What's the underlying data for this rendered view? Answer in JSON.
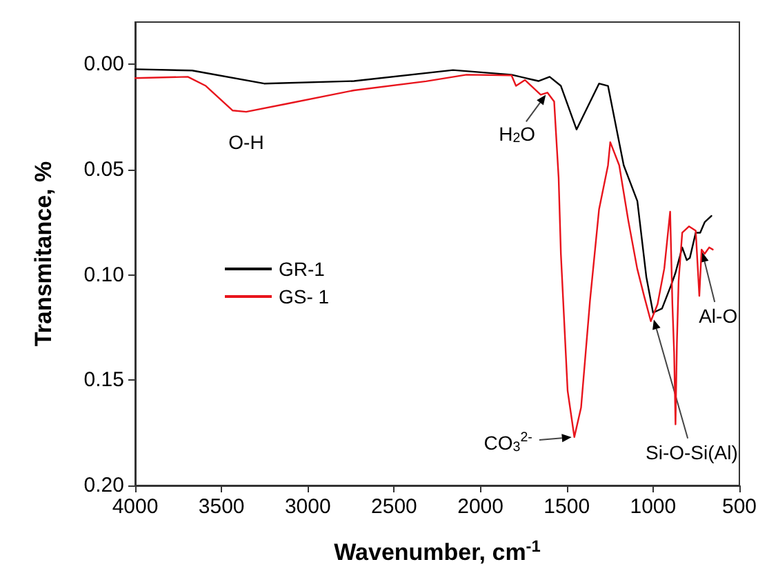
{
  "chart_data": {
    "type": "line",
    "xlabel": "Wavenumber, cm$^{-1}$",
    "ylabel": "Transmitance, %",
    "xlim": [
      4000,
      500
    ],
    "xticks": [
      4000,
      3500,
      3000,
      2500,
      2000,
      1500,
      1000,
      500
    ],
    "ylim": [
      0.2,
      -0.02
    ],
    "yticks": [
      {
        "value": 0,
        "label": "0.00"
      },
      {
        "value": 0.05,
        "label": "0.05"
      },
      {
        "value": 0.1,
        "label": "0.10"
      },
      {
        "value": 0.15,
        "label": "0.15"
      },
      {
        "value": 0.2,
        "label": "0.20"
      }
    ],
    "grid": false,
    "legend": "left",
    "marker": "none",
    "line_style": "solid",
    "series": [
      {
        "name": "GR-1",
        "color": "#000000",
        "x": [
          4000,
          3670,
          3253,
          2732,
          2159,
          1820,
          1664,
          1599,
          1534,
          1443,
          1313,
          1261,
          1170,
          1091,
          1039,
          1000,
          948,
          896,
          870,
          831,
          805,
          787,
          753,
          727,
          701,
          662
        ],
        "values": [
          0.0024,
          0.003,
          0.0092,
          0.008,
          0.0028,
          0.005,
          0.008,
          0.006,
          0.0103,
          0.031,
          0.0092,
          0.0103,
          0.048,
          0.065,
          0.101,
          0.118,
          0.116,
          0.105,
          0.099,
          0.087,
          0.093,
          0.092,
          0.08,
          0.08,
          0.075,
          0.072
        ]
      },
      {
        "name": "GS- 1",
        "color": "#e8141c",
        "x": [
          4000,
          3695,
          3591,
          3435,
          3357,
          3122,
          2732,
          2315,
          2081,
          1820,
          1794,
          1742,
          1651,
          1612,
          1573,
          1547,
          1534,
          1495,
          1456,
          1417,
          1365,
          1313,
          1261,
          1248,
          1196,
          1144,
          1092,
          1052,
          1013,
          974,
          935,
          901,
          888,
          878,
          870,
          862,
          852,
          831,
          792,
          753,
          732,
          719,
          701,
          675,
          654
        ],
        "values": [
          0.0066,
          0.006,
          0.0103,
          0.022,
          0.0226,
          0.0188,
          0.0124,
          0.0081,
          0.005,
          0.0053,
          0.0103,
          0.0075,
          0.0145,
          0.0135,
          0.0177,
          0.054,
          0.09,
          0.155,
          0.177,
          0.163,
          0.112,
          0.069,
          0.048,
          0.037,
          0.048,
          0.074,
          0.097,
          0.11,
          0.122,
          0.114,
          0.097,
          0.07,
          0.114,
          0.137,
          0.171,
          0.133,
          0.103,
          0.08,
          0.077,
          0.079,
          0.11,
          0.088,
          0.09,
          0.087,
          0.088
        ]
      }
    ],
    "annotations": [
      {
        "text": "O-H",
        "x": 3357,
        "y": 0.0226
      },
      {
        "text": "H$_{2}$O",
        "x": 1612,
        "y": 0.0135
      },
      {
        "text": "CO$_{3}$$^{2-}$",
        "x": 1456,
        "y": 0.177
      },
      {
        "text": "Si-O-Si(Al)",
        "x": 1000,
        "y": 0.12
      },
      {
        "text": "Al-O",
        "x": 719,
        "y": 0.088
      }
    ]
  }
}
